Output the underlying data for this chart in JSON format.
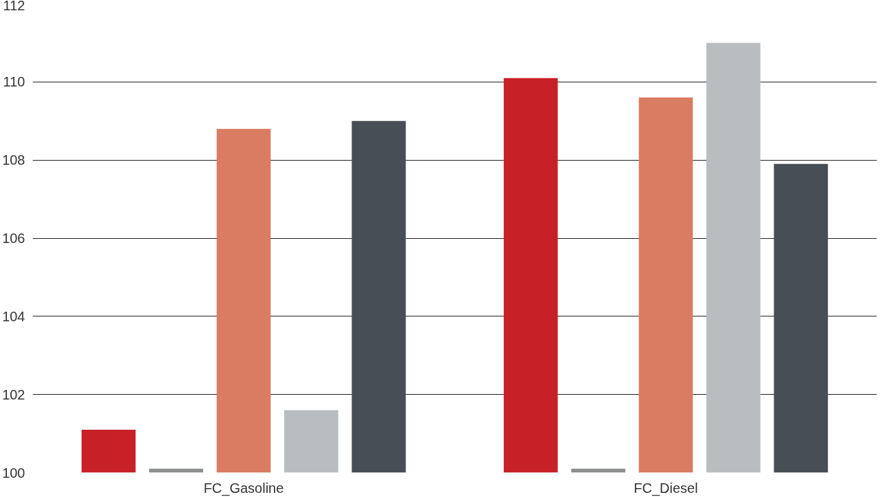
{
  "chart_data": {
    "type": "bar",
    "categories": [
      "FC_Gasoline",
      "FC_Diesel"
    ],
    "series": [
      {
        "color": "#c82027",
        "values": [
          101.1,
          110.1
        ]
      },
      {
        "color": "#8c8e90",
        "values": [
          100.1,
          100.1
        ]
      },
      {
        "color": "#d97c62",
        "values": [
          108.8,
          109.6
        ]
      },
      {
        "color": "#babdc0",
        "values": [
          101.6,
          111.0
        ]
      },
      {
        "color": "#474e55",
        "values": [
          109.0,
          107.9
        ]
      }
    ],
    "ylim": [
      100,
      112
    ],
    "yticks": [
      100,
      102,
      104,
      106,
      108,
      110,
      112
    ],
    "grid": "y"
  }
}
